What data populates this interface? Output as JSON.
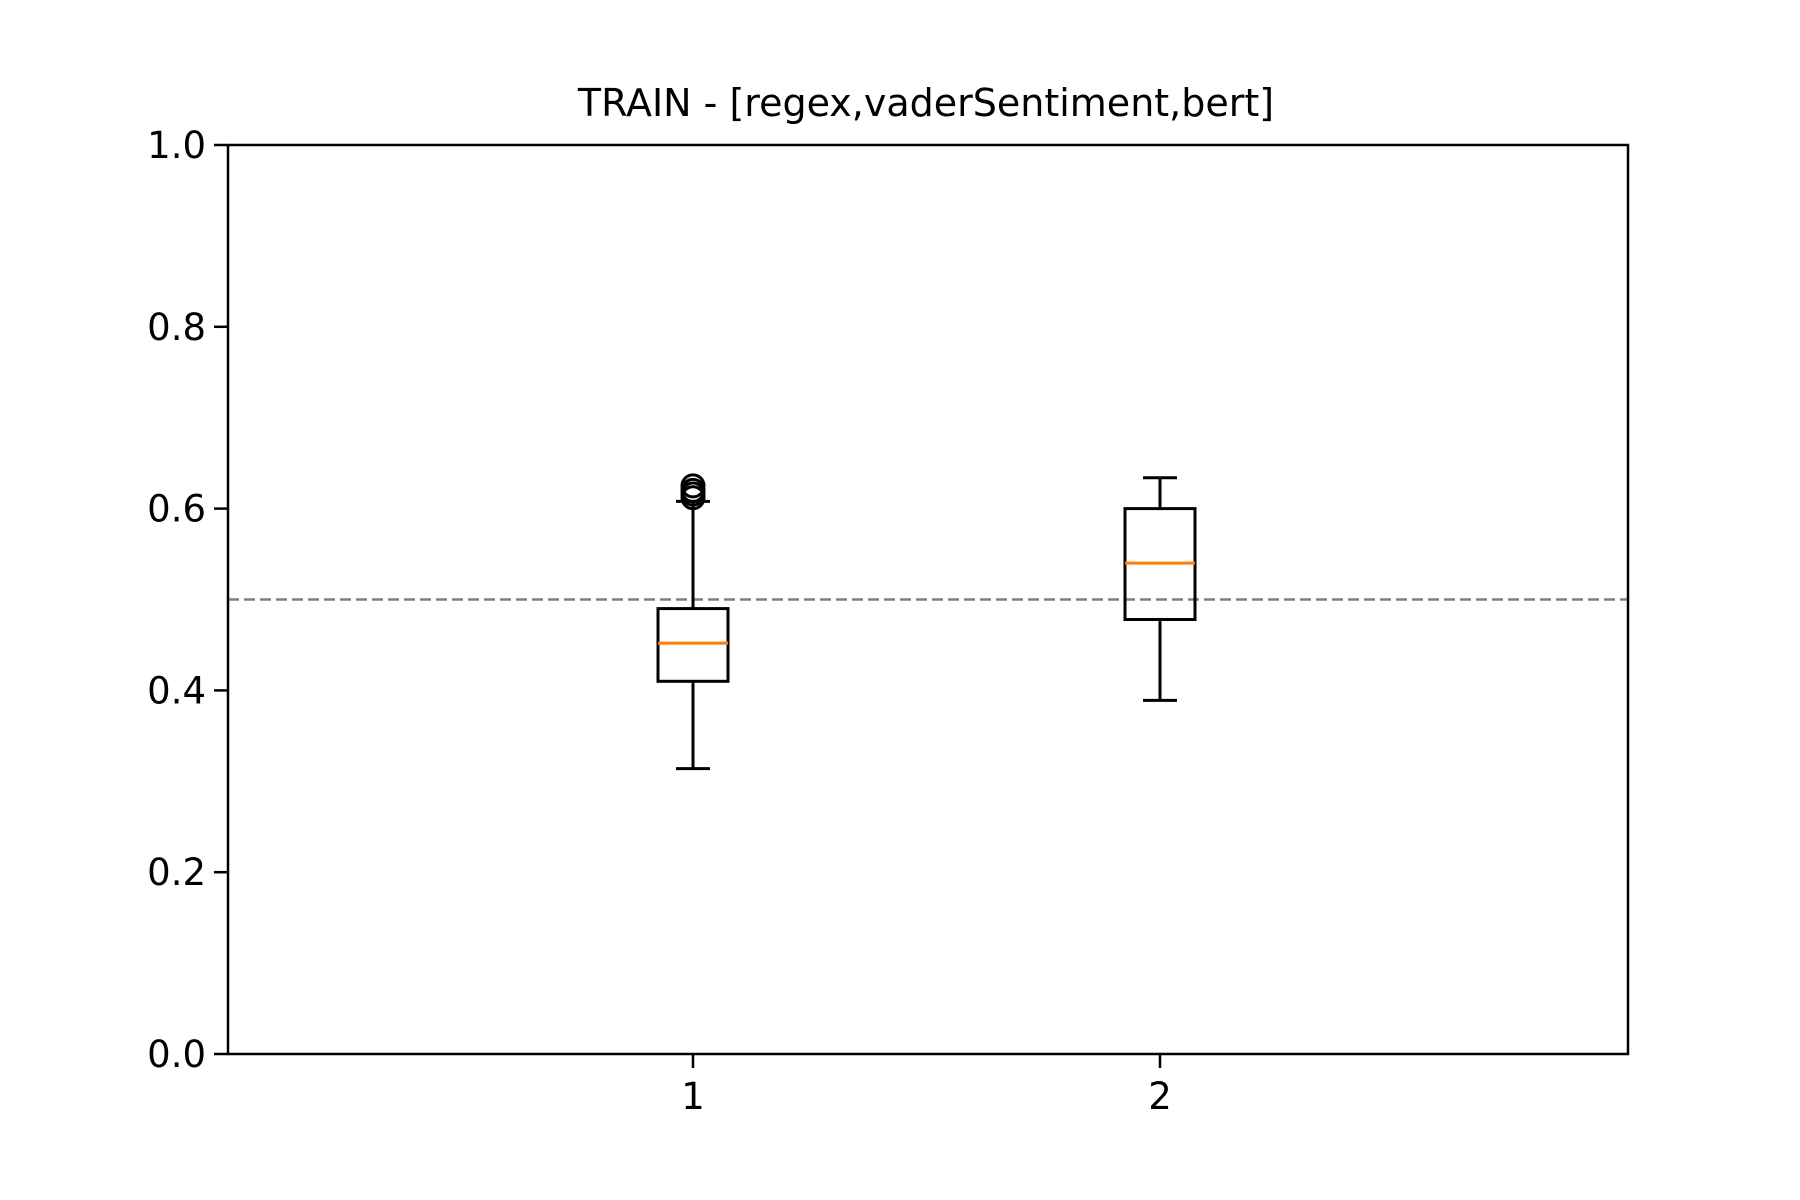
{
  "chart_data": {
    "type": "box",
    "title": "TRAIN - [regex,vaderSentiment,bert]",
    "xlabel": "",
    "ylabel": "",
    "ylim": [
      0.0,
      1.0
    ],
    "y_ticks": [
      "0.0",
      "0.2",
      "0.4",
      "0.6",
      "0.8",
      "1.0"
    ],
    "categories": [
      "1",
      "2"
    ],
    "boxes": [
      {
        "label": "1",
        "whisker_low": 0.314,
        "q1": 0.41,
        "median": 0.452,
        "q3": 0.49,
        "whisker_high": 0.608,
        "outliers": [
          0.612,
          0.616,
          0.62,
          0.625
        ]
      },
      {
        "label": "2",
        "whisker_low": 0.389,
        "q1": 0.478,
        "median": 0.54,
        "q3": 0.6,
        "whisker_high": 0.634,
        "outliers": []
      }
    ],
    "reference_line": {
      "y": 0.5,
      "style": "dashed",
      "color": "#808080"
    },
    "grid": false,
    "colors": {
      "box": "#000000",
      "median": "#ff7f0e",
      "reference": "#808080"
    }
  }
}
